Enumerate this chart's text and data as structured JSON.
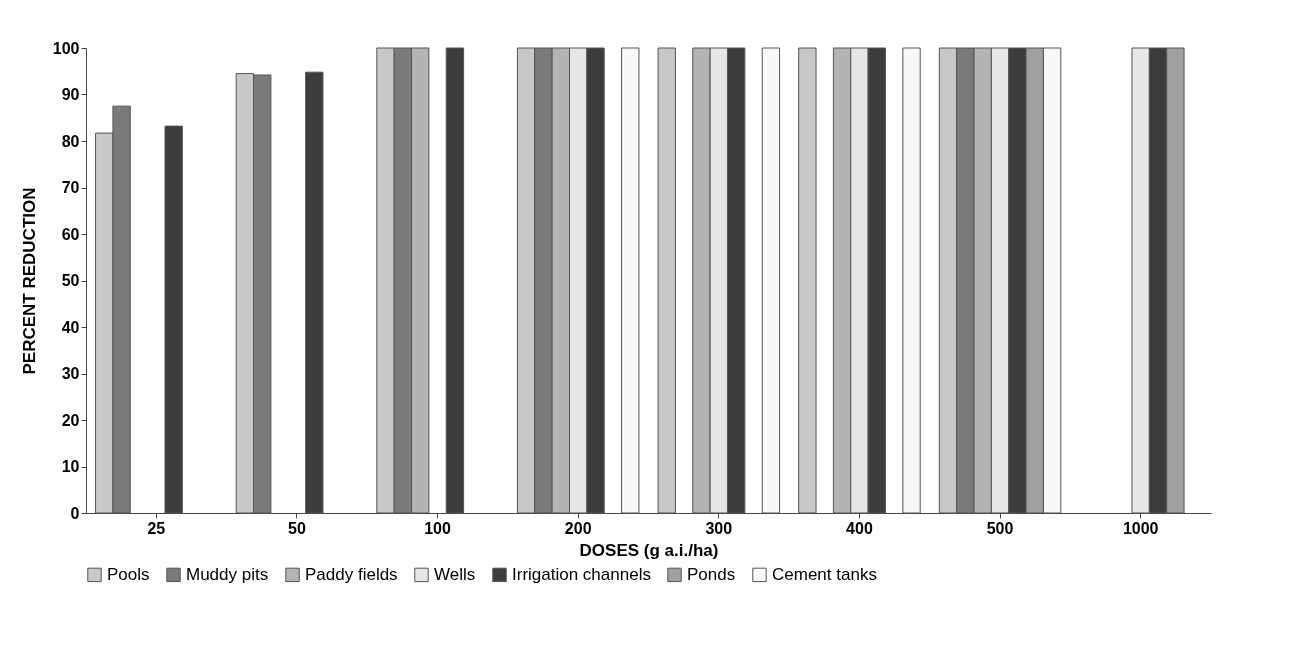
{
  "chart_data": {
    "type": "bar",
    "xlabel": "DOSES (g a.i./ha)",
    "ylabel": "PERCENT REDUCTION",
    "categories": [
      "25",
      "50",
      "100",
      "200",
      "300",
      "400",
      "500",
      "1000"
    ],
    "series": [
      {
        "name": "Pools",
        "color": "#c8c8c8",
        "values": [
          81.7,
          94.5,
          100,
          100,
          100,
          100,
          100,
          null
        ]
      },
      {
        "name": "Muddy pits",
        "color": "#7a7a7a",
        "values": [
          87.5,
          94.2,
          100,
          100,
          null,
          null,
          100,
          null
        ]
      },
      {
        "name": "Paddy fields",
        "color": "#b4b4b4",
        "values": [
          null,
          null,
          100,
          100,
          100,
          100,
          100,
          null
        ]
      },
      {
        "name": "Wells",
        "color": "#e6e6e6",
        "values": [
          null,
          null,
          null,
          100,
          100,
          100,
          100,
          100
        ]
      },
      {
        "name": "Irrigation channels",
        "color": "#3c3c3c",
        "values": [
          83.2,
          94.8,
          100,
          100,
          100,
          100,
          100,
          100
        ]
      },
      {
        "name": "Ponds",
        "color": "#a0a0a0",
        "values": [
          null,
          null,
          null,
          null,
          null,
          null,
          100,
          100
        ]
      },
      {
        "name": "Cement tanks",
        "color": "#f8f8f8",
        "values": [
          null,
          null,
          null,
          100,
          100,
          100,
          100,
          null
        ]
      }
    ],
    "ylim": [
      0,
      100
    ],
    "yticks": [
      0,
      10,
      20,
      30,
      40,
      50,
      60,
      70,
      80,
      90,
      100
    ],
    "legend": "bottom"
  }
}
